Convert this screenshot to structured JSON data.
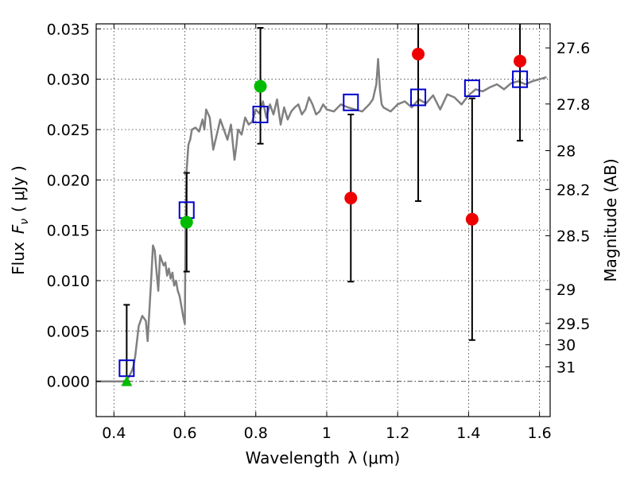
{
  "chart_data": {
    "type": "scatter",
    "title": "",
    "xlabel": "Wavelength",
    "xlabel_symbol": "λ (μm)",
    "ylabel": "Flux",
    "ylabel_symbol": "F",
    "ylabel_subscript": "ν",
    "ylabel_unit": "( μJy )",
    "y2label": "Magnitude (AB)",
    "xlim": [
      0.35,
      1.63
    ],
    "ylim": [
      -0.0035,
      0.0355
    ],
    "x_ticks": [
      0.4,
      0.6,
      0.8,
      1.0,
      1.2,
      1.4,
      1.6
    ],
    "x_tick_labels": [
      "0.4",
      "0.6",
      "0.8",
      "1",
      "1.2",
      "1.4",
      "1.6"
    ],
    "y_ticks": [
      0.0,
      0.005,
      0.01,
      0.015,
      0.02,
      0.025,
      0.03,
      0.035
    ],
    "y_tick_labels": [
      "0.000",
      "0.005",
      "0.010",
      "0.015",
      "0.020",
      "0.025",
      "0.030",
      "0.035"
    ],
    "mag_ticks": [
      27.6,
      27.8,
      28,
      28.2,
      28.5,
      29,
      29.5,
      30,
      31
    ],
    "mag_tick_labels": [
      "27.6",
      "27.8",
      "28",
      "28.2",
      "28.5",
      "29",
      "29.5",
      "30",
      "31"
    ],
    "grid": true,
    "series": [
      {
        "marker": "line",
        "color": "#808080",
        "x": [
          0.35,
          0.36,
          0.38,
          0.4,
          0.42,
          0.43,
          0.44,
          0.45,
          0.455,
          0.46,
          0.465,
          0.47,
          0.48,
          0.49,
          0.495,
          0.5,
          0.505,
          0.51,
          0.515,
          0.52,
          0.525,
          0.53,
          0.535,
          0.54,
          0.545,
          0.55,
          0.555,
          0.56,
          0.565,
          0.57,
          0.575,
          0.58,
          0.585,
          0.59,
          0.595,
          0.6,
          0.602,
          0.605,
          0.61,
          0.615,
          0.62,
          0.63,
          0.64,
          0.65,
          0.655,
          0.66,
          0.67,
          0.68,
          0.69,
          0.7,
          0.71,
          0.72,
          0.73,
          0.74,
          0.745,
          0.75,
          0.76,
          0.77,
          0.78,
          0.79,
          0.8,
          0.81,
          0.82,
          0.83,
          0.84,
          0.85,
          0.86,
          0.87,
          0.88,
          0.89,
          0.9,
          0.91,
          0.92,
          0.93,
          0.94,
          0.95,
          0.96,
          0.97,
          0.98,
          0.99,
          1.0,
          1.02,
          1.04,
          1.06,
          1.08,
          1.1,
          1.12,
          1.13,
          1.14,
          1.145,
          1.15,
          1.155,
          1.16,
          1.18,
          1.2,
          1.22,
          1.24,
          1.26,
          1.28,
          1.3,
          1.32,
          1.34,
          1.36,
          1.38,
          1.4,
          1.42,
          1.44,
          1.46,
          1.48,
          1.5,
          1.52,
          1.54,
          1.56,
          1.58,
          1.6,
          1.62
        ],
        "y": [
          0.0,
          0.0,
          0.0,
          0.0,
          0.0,
          0.0,
          0.0003,
          0.001,
          0.0015,
          0.0025,
          0.004,
          0.0055,
          0.0065,
          0.006,
          0.004,
          0.007,
          0.01,
          0.0135,
          0.013,
          0.011,
          0.009,
          0.0125,
          0.012,
          0.0115,
          0.0118,
          0.0105,
          0.0112,
          0.0102,
          0.0108,
          0.0095,
          0.01,
          0.009,
          0.0085,
          0.0075,
          0.0065,
          0.0057,
          0.015,
          0.021,
          0.0235,
          0.024,
          0.025,
          0.0252,
          0.0248,
          0.026,
          0.025,
          0.027,
          0.0262,
          0.023,
          0.0245,
          0.026,
          0.025,
          0.024,
          0.0255,
          0.022,
          0.0233,
          0.025,
          0.0245,
          0.0262,
          0.0255,
          0.0258,
          0.027,
          0.0266,
          0.0278,
          0.0262,
          0.0275,
          0.0265,
          0.028,
          0.0255,
          0.0272,
          0.026,
          0.0268,
          0.0272,
          0.0275,
          0.0265,
          0.027,
          0.0282,
          0.0275,
          0.0265,
          0.0268,
          0.0275,
          0.027,
          0.0268,
          0.0275,
          0.0272,
          0.027,
          0.0268,
          0.0275,
          0.028,
          0.0295,
          0.032,
          0.029,
          0.0275,
          0.0272,
          0.0268,
          0.0275,
          0.0278,
          0.0272,
          0.028,
          0.0276,
          0.0284,
          0.027,
          0.0285,
          0.0282,
          0.0275,
          0.0284,
          0.029,
          0.0288,
          0.0292,
          0.0295,
          0.029,
          0.0296,
          0.0298,
          0.0295,
          0.0298,
          0.03,
          0.0302
        ]
      },
      {
        "marker": "open-square",
        "color": "#0000cc",
        "x": [
          0.436,
          0.605,
          0.813,
          1.068,
          1.258,
          1.41,
          1.545
        ],
        "y": [
          0.0013,
          0.017,
          0.0265,
          0.0277,
          0.0282,
          0.0291,
          0.03
        ]
      },
      {
        "marker": "circle",
        "color": "#00bb00",
        "x": [
          0.605,
          0.813
        ],
        "y": [
          0.0158,
          0.0293
        ]
      },
      {
        "marker": "triangle-up",
        "color": "#00bb00",
        "x": [
          0.436
        ],
        "y": [
          0.0
        ]
      },
      {
        "marker": "circle",
        "color": "#ee0000",
        "x": [
          1.068,
          1.258,
          1.41,
          1.545
        ],
        "y": [
          0.0182,
          0.0325,
          0.0161,
          0.0318
        ]
      }
    ],
    "error_bars": [
      {
        "x": 0.436,
        "low": 0.0,
        "high": 0.0076
      },
      {
        "x": 0.605,
        "low": 0.0109,
        "high": 0.0207
      },
      {
        "x": 0.813,
        "low": 0.0236,
        "high": 0.0351
      },
      {
        "x": 1.068,
        "low": 0.0099,
        "high": 0.0265
      },
      {
        "x": 1.258,
        "low": 0.0179,
        "high": 0.036
      },
      {
        "x": 1.41,
        "low": 0.0041,
        "high": 0.0281
      },
      {
        "x": 1.545,
        "low": 0.0239,
        "high": 0.036
      }
    ]
  }
}
